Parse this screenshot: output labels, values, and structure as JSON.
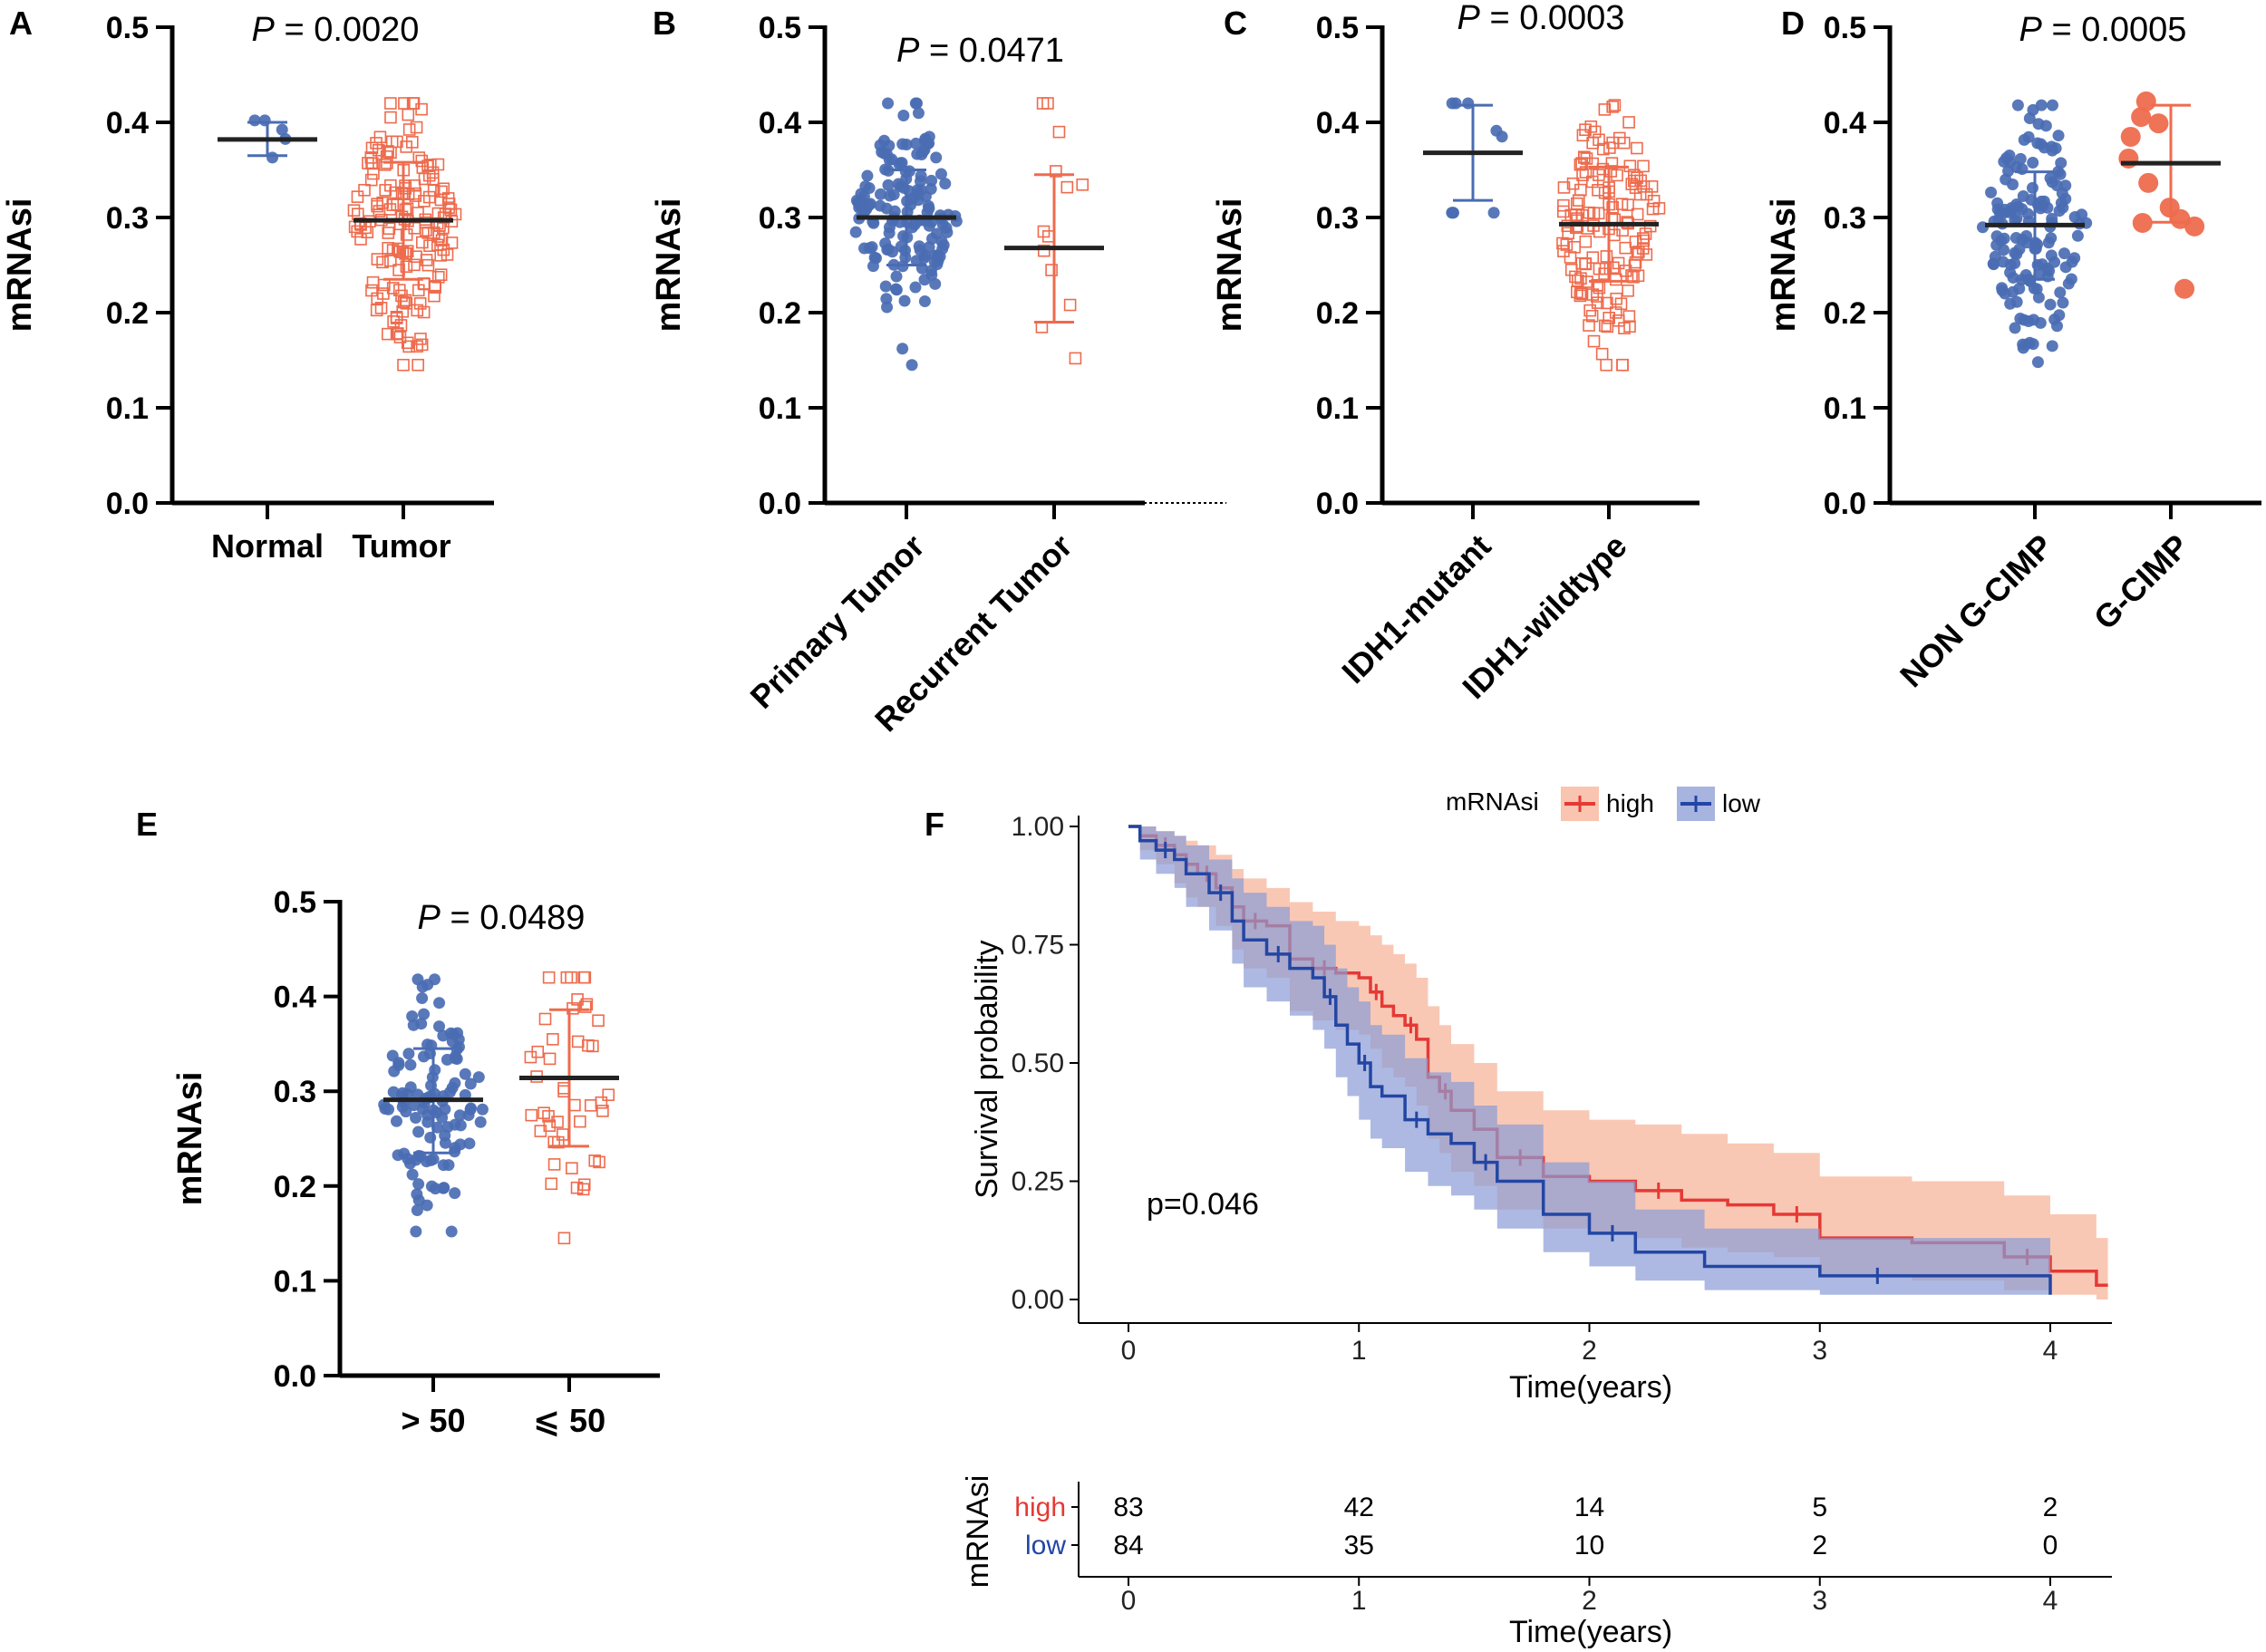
{
  "colors": {
    "blue": "#4a6cb3",
    "orange": "#ee6b4d",
    "blue_fill": "#8a9bd6",
    "red_fill": "#f7b095",
    "km_high": "#e53935",
    "km_low": "#2346a4",
    "black": "#000000"
  },
  "icons": {
    "blue_marker": "filled-circle",
    "red_marker_open": "open-square",
    "red_marker_filled": "filled-circle"
  },
  "chart_data": [
    {
      "id": "A",
      "panel_label": "A",
      "type": "scatter",
      "title": "",
      "ylabel": "mRNAsi",
      "ylim": [
        0.0,
        0.5
      ],
      "yticks": [
        "0.0",
        "0.1",
        "0.2",
        "0.3",
        "0.4",
        "0.5"
      ],
      "pvalue": {
        "prefix": "P",
        "text": " = 0.0020"
      },
      "label_rotation": 0,
      "categories": [
        "Normal",
        "Tumor"
      ],
      "groups": [
        {
          "name": "Normal",
          "n": 5,
          "marker": "circle",
          "color": "blue",
          "mean": 0.382,
          "sd_low": 0.365,
          "sd_high": 0.4,
          "min": 0.363,
          "max": 0.402
        },
        {
          "name": "Tumor",
          "n": 170,
          "marker": "open-square",
          "color": "orange",
          "mean": 0.297,
          "sd_low": 0.235,
          "sd_high": 0.358,
          "min": 0.145,
          "max": 0.42
        }
      ]
    },
    {
      "id": "B",
      "panel_label": "B",
      "type": "scatter",
      "ylabel": "mRNAsi",
      "ylim": [
        0.0,
        0.5
      ],
      "yticks": [
        "0.0",
        "0.1",
        "0.2",
        "0.3",
        "0.4",
        "0.5"
      ],
      "pvalue": {
        "prefix": "P",
        "text": " = 0.0471"
      },
      "label_rotation": -45,
      "categories": [
        "Primary Tumor",
        "Recurrent Tumor"
      ],
      "groups": [
        {
          "name": "Primary Tumor",
          "n": 155,
          "marker": "circle",
          "color": "blue",
          "mean": 0.3,
          "sd_low": 0.25,
          "sd_high": 0.35,
          "min": 0.145,
          "max": 0.42
        },
        {
          "name": "Recurrent Tumor",
          "n": 13,
          "marker": "open-square",
          "color": "orange",
          "mean": 0.268,
          "sd_low": 0.19,
          "sd_high": 0.345,
          "min": 0.152,
          "max": 0.42
        }
      ]
    },
    {
      "id": "C",
      "panel_label": "C",
      "type": "scatter",
      "ylabel": "mRNAsi",
      "ylim": [
        0.0,
        0.5
      ],
      "yticks": [
        "0.0",
        "0.1",
        "0.2",
        "0.3",
        "0.4",
        "0.5"
      ],
      "pvalue": {
        "prefix": "P",
        "text": " = 0.0003"
      },
      "label_rotation": -45,
      "categories": [
        "IDH1-mutant",
        "IDH1-wildtype"
      ],
      "groups": [
        {
          "name": "IDH1-mutant",
          "n": 9,
          "marker": "circle",
          "color": "blue",
          "mean": 0.368,
          "sd_low": 0.318,
          "sd_high": 0.418,
          "min": 0.305,
          "max": 0.42
        },
        {
          "name": "IDH1-wildtype",
          "n": 150,
          "marker": "open-square",
          "color": "orange",
          "mean": 0.293,
          "sd_low": 0.233,
          "sd_high": 0.353,
          "min": 0.145,
          "max": 0.418
        }
      ]
    },
    {
      "id": "D",
      "panel_label": "D",
      "type": "scatter",
      "ylabel": "mRNAsi",
      "ylim": [
        0.0,
        0.5
      ],
      "yticks": [
        "0.0",
        "0.1",
        "0.2",
        "0.3",
        "0.4",
        "0.5"
      ],
      "pvalue": {
        "prefix": "P",
        "text": " = 0.0005"
      },
      "label_rotation": -45,
      "categories": [
        "NON G-CIMP",
        "G-CIMP"
      ],
      "groups": [
        {
          "name": "NON G-CIMP",
          "n": 150,
          "marker": "circle",
          "color": "blue",
          "mean": 0.292,
          "sd_low": 0.235,
          "sd_high": 0.348,
          "min": 0.148,
          "max": 0.418
        },
        {
          "name": "G-CIMP",
          "n": 11,
          "marker": "big-circle",
          "color": "orange",
          "mean": 0.357,
          "sd_low": 0.295,
          "sd_high": 0.418,
          "min": 0.225,
          "max": 0.422
        }
      ]
    },
    {
      "id": "E",
      "panel_label": "E",
      "type": "scatter",
      "ylabel": "mRNAsi",
      "ylim": [
        0.0,
        0.5
      ],
      "yticks": [
        "0.0",
        "0.1",
        "0.2",
        "0.3",
        "0.4",
        "0.5"
      ],
      "pvalue": {
        "prefix": "P",
        "text": " = 0.0489"
      },
      "label_rotation": 0,
      "categories": [
        "> 50",
        "⩽ 50"
      ],
      "groups": [
        {
          "name": "> 50",
          "n": 115,
          "marker": "circle",
          "color": "blue",
          "mean": 0.291,
          "sd_low": 0.235,
          "sd_high": 0.345,
          "min": 0.152,
          "max": 0.418
        },
        {
          "name": "⩽ 50",
          "n": 45,
          "marker": "open-square",
          "color": "orange",
          "mean": 0.314,
          "sd_low": 0.242,
          "sd_high": 0.386,
          "min": 0.145,
          "max": 0.42
        }
      ]
    },
    {
      "id": "F",
      "panel_label": "F",
      "type": "line",
      "subtype": "kaplan-meier",
      "xlabel": "Time(years)",
      "ylabel": "Survival probability",
      "xlim": [
        -0.2,
        4.25
      ],
      "ylim": [
        0.0,
        1.0
      ],
      "xticks": [
        "0",
        "1",
        "2",
        "3",
        "4"
      ],
      "yticks": [
        "0.00",
        "0.25",
        "0.50",
        "0.75",
        "1.00"
      ],
      "pvalue_text": "p=0.046",
      "legend": {
        "title": "mRNAsi",
        "position": "top-center",
        "entries": [
          "high",
          "low"
        ]
      },
      "series": [
        {
          "name": "high",
          "color": "km_high",
          "fill": "red_fill",
          "times": [
            0,
            0.05,
            0.12,
            0.2,
            0.25,
            0.3,
            0.38,
            0.45,
            0.5,
            0.6,
            0.7,
            0.8,
            0.9,
            1.0,
            1.05,
            1.1,
            1.15,
            1.2,
            1.25,
            1.3,
            1.35,
            1.4,
            1.5,
            1.6,
            1.8,
            2.0,
            2.2,
            2.4,
            2.6,
            2.8,
            3.0,
            3.4,
            3.8,
            4.0,
            4.2,
            4.25
          ],
          "survival": [
            1.0,
            0.98,
            0.96,
            0.94,
            0.92,
            0.9,
            0.87,
            0.83,
            0.8,
            0.79,
            0.72,
            0.7,
            0.69,
            0.68,
            0.65,
            0.62,
            0.6,
            0.58,
            0.55,
            0.47,
            0.44,
            0.4,
            0.36,
            0.3,
            0.26,
            0.25,
            0.23,
            0.21,
            0.2,
            0.18,
            0.13,
            0.12,
            0.09,
            0.06,
            0.03,
            0.03
          ],
          "ci_upper": [
            1.0,
            1.0,
            0.99,
            0.98,
            0.97,
            0.96,
            0.94,
            0.91,
            0.89,
            0.87,
            0.84,
            0.82,
            0.8,
            0.79,
            0.77,
            0.75,
            0.73,
            0.71,
            0.68,
            0.62,
            0.58,
            0.54,
            0.5,
            0.44,
            0.4,
            0.38,
            0.37,
            0.35,
            0.33,
            0.31,
            0.26,
            0.25,
            0.22,
            0.18,
            0.13,
            0.13
          ],
          "ci_lower": [
            1.0,
            0.95,
            0.92,
            0.88,
            0.85,
            0.83,
            0.79,
            0.74,
            0.7,
            0.68,
            0.61,
            0.59,
            0.57,
            0.56,
            0.53,
            0.49,
            0.47,
            0.45,
            0.41,
            0.34,
            0.31,
            0.27,
            0.24,
            0.19,
            0.15,
            0.14,
            0.13,
            0.11,
            0.1,
            0.09,
            0.05,
            0.04,
            0.02,
            0.01,
            0.0,
            0.0
          ]
        },
        {
          "name": "low",
          "color": "km_low",
          "fill": "blue_fill",
          "times": [
            0,
            0.05,
            0.12,
            0.2,
            0.25,
            0.35,
            0.45,
            0.5,
            0.6,
            0.7,
            0.8,
            0.85,
            0.9,
            0.95,
            1.0,
            1.05,
            1.1,
            1.2,
            1.3,
            1.4,
            1.5,
            1.6,
            1.8,
            2.0,
            2.2,
            2.5,
            3.0,
            3.5,
            4.0
          ],
          "survival": [
            1.0,
            0.97,
            0.95,
            0.93,
            0.9,
            0.86,
            0.8,
            0.76,
            0.73,
            0.7,
            0.68,
            0.64,
            0.58,
            0.54,
            0.5,
            0.45,
            0.43,
            0.38,
            0.35,
            0.33,
            0.29,
            0.25,
            0.18,
            0.14,
            0.1,
            0.07,
            0.05,
            0.05,
            0.01
          ],
          "ci_upper": [
            1.0,
            1.0,
            0.99,
            0.98,
            0.96,
            0.93,
            0.89,
            0.86,
            0.83,
            0.8,
            0.79,
            0.75,
            0.7,
            0.66,
            0.63,
            0.58,
            0.56,
            0.51,
            0.48,
            0.46,
            0.41,
            0.37,
            0.29,
            0.25,
            0.19,
            0.15,
            0.13,
            0.13,
            0.1
          ],
          "ci_lower": [
            1.0,
            0.93,
            0.9,
            0.87,
            0.83,
            0.78,
            0.71,
            0.66,
            0.63,
            0.6,
            0.57,
            0.53,
            0.47,
            0.43,
            0.38,
            0.34,
            0.32,
            0.27,
            0.24,
            0.22,
            0.19,
            0.15,
            0.1,
            0.07,
            0.04,
            0.02,
            0.01,
            0.01,
            0.0
          ]
        }
      ],
      "risk_table": {
        "ylabel": "mRNAsi",
        "xlabel": "Time(years)",
        "xticks": [
          "0",
          "1",
          "2",
          "3",
          "4"
        ],
        "rows": [
          {
            "name": "high",
            "color": "km_high",
            "counts": [
              "83",
              "42",
              "14",
              "5",
              "2"
            ]
          },
          {
            "name": "low",
            "color": "km_low",
            "counts": [
              "84",
              "35",
              "10",
              "2",
              "0"
            ]
          }
        ]
      }
    }
  ]
}
